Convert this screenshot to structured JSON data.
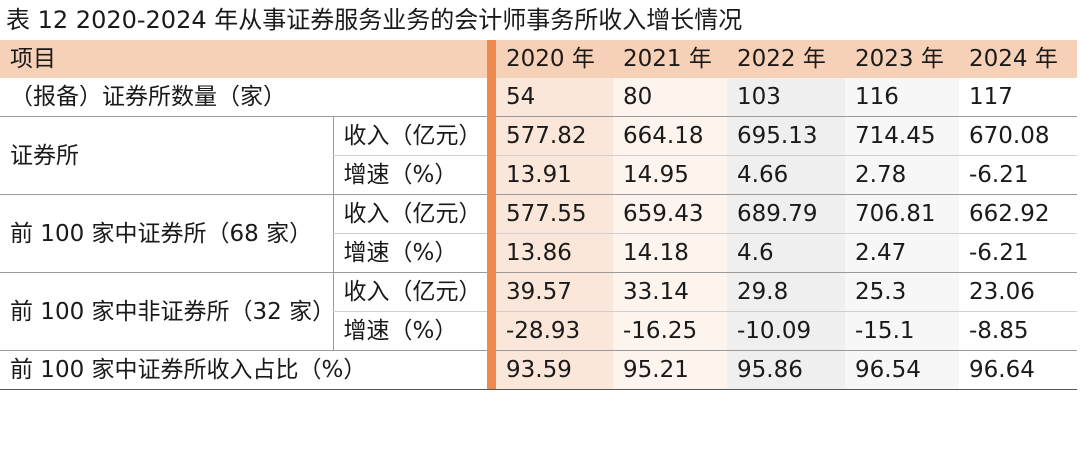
{
  "caption": "表 12    2020-2024 年从事证券服务业务的会计师事务所收入增长情况",
  "header": {
    "item": "项目",
    "years": [
      "2020 年",
      "2021 年",
      "2022 年",
      "2023 年",
      "2024 年"
    ]
  },
  "rows": {
    "count": {
      "label": "（报备）证券所数量（家）",
      "values": [
        "54",
        "80",
        "103",
        "116",
        "117"
      ]
    },
    "securities": {
      "label": "证券所",
      "income_label": "收入（亿元）",
      "income": [
        "577.82",
        "664.18",
        "695.13",
        "714.45",
        "670.08"
      ],
      "growth_label": "增速（%）",
      "growth": [
        "13.91",
        "14.95",
        "4.66",
        "2.78",
        "-6.21"
      ]
    },
    "top100_sec": {
      "label": "前 100 家中证券所（68 家）",
      "income_label": "收入（亿元）",
      "income": [
        "577.55",
        "659.43",
        "689.79",
        "706.81",
        "662.92"
      ],
      "growth_label": "增速（%）",
      "growth": [
        "13.86",
        "14.18",
        "4.6",
        "2.47",
        "-6.21"
      ]
    },
    "top100_nonsec": {
      "label": "前 100 家中非证券所（32 家）",
      "income_label": "收入（亿元）",
      "income": [
        "39.57",
        "33.14",
        "29.8",
        "25.3",
        "23.06"
      ],
      "growth_label": "增速（%）",
      "growth": [
        "-28.93",
        "-16.25",
        "-10.09",
        "-15.1",
        "-8.85"
      ]
    },
    "share": {
      "label": "前 100 家中证券所收入占比（%）",
      "values": [
        "93.59",
        "95.21",
        "95.86",
        "96.54",
        "96.64"
      ]
    }
  }
}
